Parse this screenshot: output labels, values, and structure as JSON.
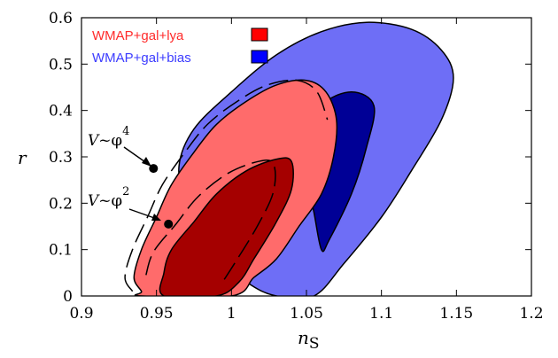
{
  "chart_data": {
    "type": "contour",
    "xlabel": "n",
    "xlabel_sub": "S",
    "ylabel": "r",
    "xlim": [
      0.9,
      1.2
    ],
    "ylim": [
      0,
      0.6
    ],
    "xticks": [
      "0.9",
      "0.95",
      "1",
      "1.05",
      "1.1",
      "1.15",
      "1.2"
    ],
    "yticks": [
      "0",
      "0.1",
      "0.2",
      "0.3",
      "0.4",
      "0.5",
      "0.6"
    ],
    "grid": false,
    "legend_position": "top-left",
    "colors": {
      "blue_outer": "#6e6ef6",
      "blue_inner": "#000096",
      "red_outer": "#ff6b6b",
      "red_inner": "#a50000",
      "legend_red_text": "#ff2a2a",
      "legend_blue_text": "#3c3cff",
      "legend_red_swatch": "#ff0000",
      "legend_blue_swatch": "#0000ff"
    },
    "series": [
      {
        "name": "WMAP+gal+lya",
        "contours": {
          "outer": [
            [
              0.94,
              0.01
            ],
            [
              0.935,
              0.04
            ],
            [
              0.94,
              0.1
            ],
            [
              0.95,
              0.17
            ],
            [
              0.96,
              0.24
            ],
            [
              0.975,
              0.31
            ],
            [
              0.99,
              0.37
            ],
            [
              1.01,
              0.42
            ],
            [
              1.03,
              0.455
            ],
            [
              1.05,
              0.465
            ],
            [
              1.063,
              0.44
            ],
            [
              1.07,
              0.38
            ],
            [
              1.068,
              0.3
            ],
            [
              1.06,
              0.22
            ],
            [
              1.045,
              0.15
            ],
            [
              1.03,
              0.08
            ],
            [
              1.015,
              0.04
            ],
            [
              1.0,
              0.0
            ],
            [
              0.94,
              0.0
            ]
          ],
          "inner": [
            [
              0.955,
              0.0
            ],
            [
              0.955,
              0.05
            ],
            [
              0.96,
              0.1
            ],
            [
              0.975,
              0.16
            ],
            [
              0.99,
              0.22
            ],
            [
              1.01,
              0.27
            ],
            [
              1.03,
              0.295
            ],
            [
              1.04,
              0.29
            ],
            [
              1.04,
              0.23
            ],
            [
              1.03,
              0.16
            ],
            [
              1.015,
              0.08
            ],
            [
              1.005,
              0.03
            ],
            [
              0.99,
              0.0
            ]
          ]
        }
      },
      {
        "name": "WMAP+gal+bias",
        "contours": {
          "outer": [
            [
              1.03,
              0.0
            ],
            [
              1.01,
              0.03
            ],
            [
              0.985,
              0.1
            ],
            [
              0.97,
              0.2
            ],
            [
              0.965,
              0.28
            ],
            [
              0.975,
              0.36
            ],
            [
              1.0,
              0.44
            ],
            [
              1.03,
              0.52
            ],
            [
              1.06,
              0.57
            ],
            [
              1.09,
              0.59
            ],
            [
              1.12,
              0.575
            ],
            [
              1.14,
              0.53
            ],
            [
              1.148,
              0.47
            ],
            [
              1.14,
              0.38
            ],
            [
              1.12,
              0.27
            ],
            [
              1.1,
              0.17
            ],
            [
              1.075,
              0.07
            ],
            [
              1.055,
              0.0
            ]
          ],
          "inner": [
            [
              1.06,
              0.1
            ],
            [
              1.055,
              0.18
            ],
            [
              1.05,
              0.26
            ],
            [
              1.05,
              0.33
            ],
            [
              1.06,
              0.41
            ],
            [
              1.08,
              0.44
            ],
            [
              1.095,
              0.41
            ],
            [
              1.09,
              0.32
            ],
            [
              1.08,
              0.22
            ],
            [
              1.065,
              0.12
            ]
          ]
        }
      }
    ],
    "points": [
      {
        "name": "phi4",
        "x": 0.948,
        "y": 0.275
      },
      {
        "name": "phi2",
        "x": 0.958,
        "y": 0.155
      }
    ],
    "annotations": [
      {
        "text": "V~",
        "phi": "φ",
        "exp": "4"
      },
      {
        "text": "V~",
        "phi": "φ",
        "exp": "2"
      }
    ],
    "legend": [
      {
        "label": "WMAP+gal+lya"
      },
      {
        "label": "WMAP+gal+bias"
      }
    ]
  }
}
